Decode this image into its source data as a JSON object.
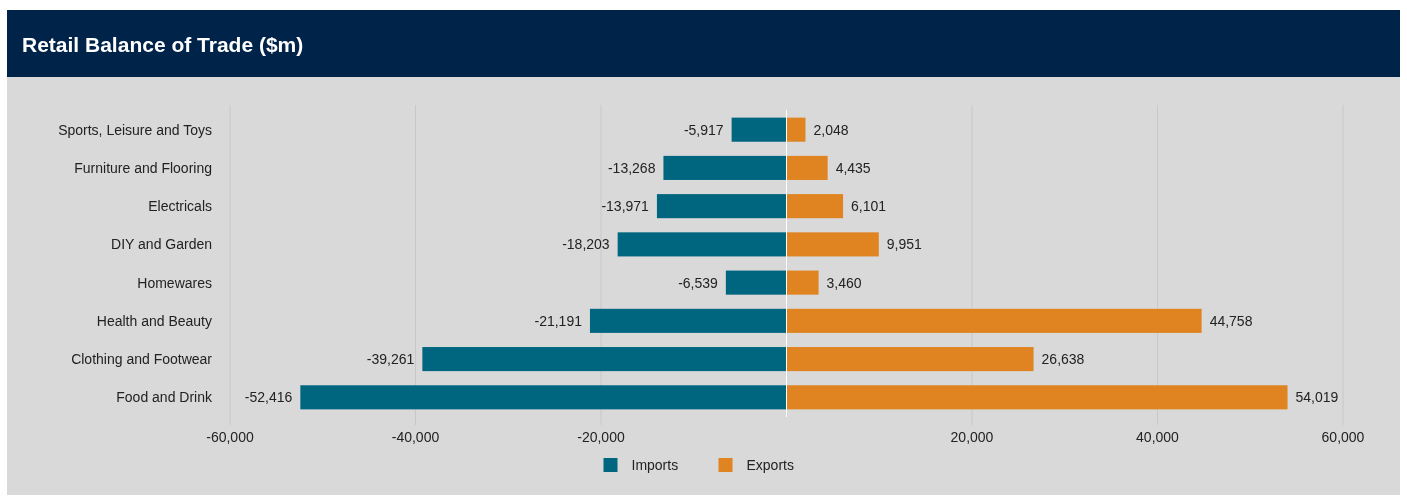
{
  "chart_data": {
    "type": "bar",
    "orientation": "horizontal",
    "stacked": true,
    "title": "Retail Balance of Trade ($m)",
    "categories": [
      "Sports, Leisure and Toys",
      "Furniture and Flooring",
      "Electricals",
      "DIY and Garden",
      "Homewares",
      "Health and Beauty",
      "Clothing and Footwear",
      "Food and Drink"
    ],
    "series": [
      {
        "name": "Imports",
        "color": "#00657f",
        "values": [
          -5917,
          -13268,
          -13971,
          -18203,
          -6539,
          -21191,
          -39261,
          -52416
        ],
        "value_labels": [
          "-5,917",
          "-13,268",
          "-13,971",
          "-18,203",
          "-6,539",
          "-21,191",
          "-39,261",
          "-52,416"
        ]
      },
      {
        "name": "Exports",
        "color": "#df8420",
        "values": [
          2048,
          4435,
          6101,
          9951,
          3460,
          44758,
          26638,
          54019
        ],
        "value_labels": [
          "2,048",
          "4,435",
          "6,101",
          "9,951",
          "3,460",
          "44,758",
          "26,638",
          "54,019"
        ]
      }
    ],
    "xlim": [
      -60000,
      60000
    ],
    "xticks": [
      {
        "value": -60000,
        "label": "-60,000"
      },
      {
        "value": -40000,
        "label": "-40,000"
      },
      {
        "value": -20000,
        "label": "-20,000"
      },
      {
        "value": 20000,
        "label": "20,000"
      },
      {
        "value": 40000,
        "label": "40,000"
      },
      {
        "value": 60000,
        "label": "60,000"
      }
    ],
    "grid": "x",
    "legend": "bottom"
  }
}
